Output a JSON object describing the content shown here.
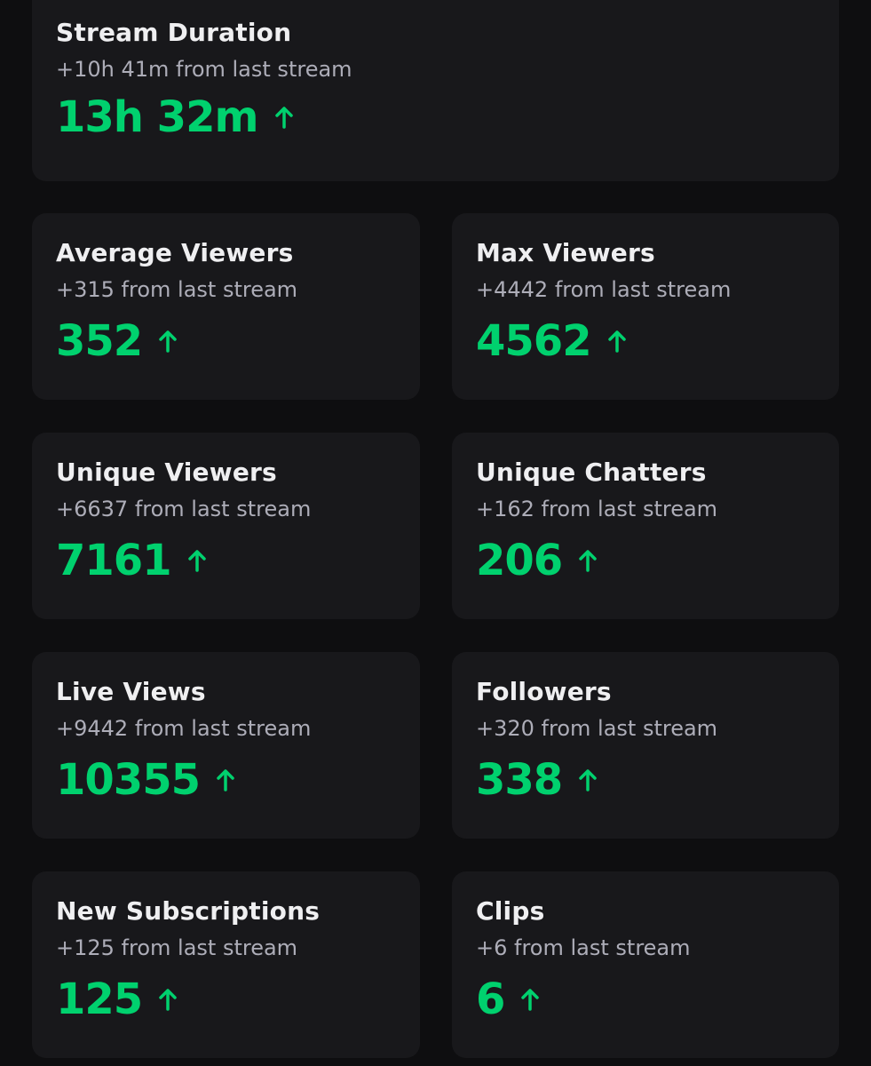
{
  "stats": {
    "stream_duration": {
      "title": "Stream Duration",
      "delta": "+10h 41m from last stream",
      "value": "13h 32m",
      "trend": "up"
    },
    "average_viewers": {
      "title": "Average Viewers",
      "delta": "+315 from last stream",
      "value": "352",
      "trend": "up"
    },
    "max_viewers": {
      "title": "Max Viewers",
      "delta": "+4442 from last stream",
      "value": "4562",
      "trend": "up"
    },
    "unique_viewers": {
      "title": "Unique Viewers",
      "delta": "+6637 from last stream",
      "value": "7161",
      "trend": "up"
    },
    "unique_chatters": {
      "title": "Unique Chatters",
      "delta": "+162 from last stream",
      "value": "206",
      "trend": "up"
    },
    "live_views": {
      "title": "Live Views",
      "delta": "+9442 from last stream",
      "value": "10355",
      "trend": "up"
    },
    "followers": {
      "title": "Followers",
      "delta": "+320 from last stream",
      "value": "338",
      "trend": "up"
    },
    "new_subscriptions": {
      "title": "New Subscriptions",
      "delta": "+125 from last stream",
      "value": "125",
      "trend": "up"
    },
    "clips": {
      "title": "Clips",
      "delta": "+6 from last stream",
      "value": "6",
      "trend": "up"
    }
  },
  "colors": {
    "background": "#0e0e10",
    "card": "#18181b",
    "title": "#efeff1",
    "subtitle": "#adadb8",
    "positive": "#00d16e"
  },
  "icons": {
    "trend_up": "arrow-up-icon"
  }
}
